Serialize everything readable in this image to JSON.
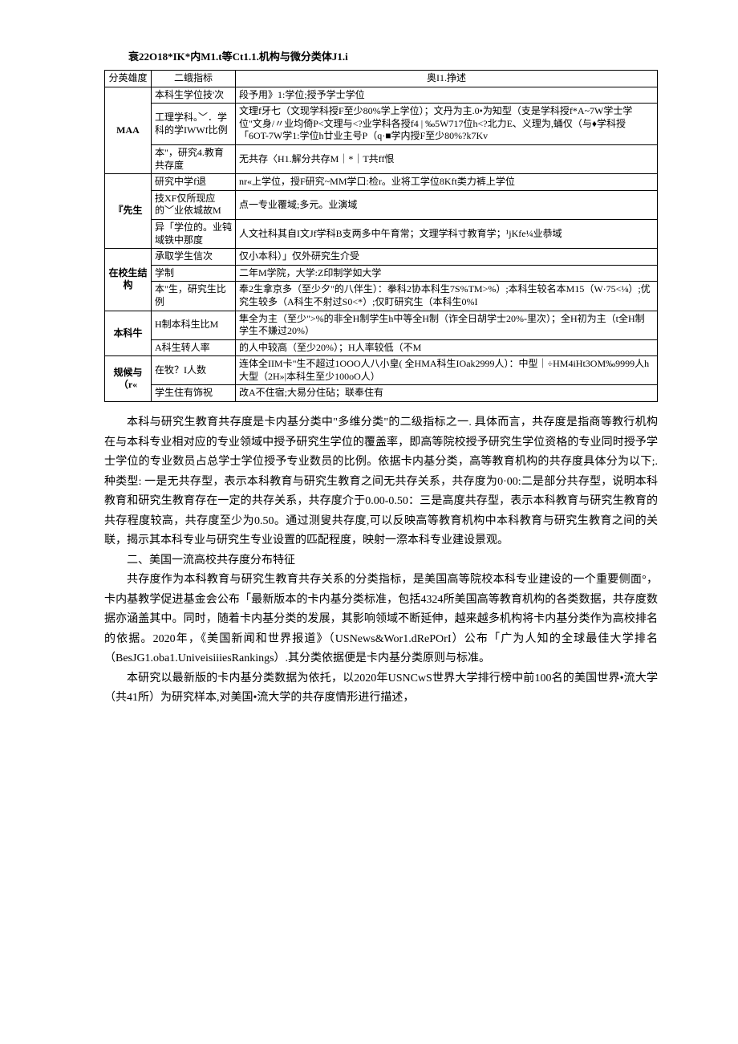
{
  "table_title": "衰22O18*IK*内M1.t等Ct1.1.机构与微分类体J1.i",
  "headers": [
    "分英雄度",
    "二蛾指标",
    "奥I1.挣述"
  ],
  "rows": [
    {
      "dim": "MAA",
      "dim_rowspan": 3,
      "sub": "本科生学位技'次",
      "desc": "段予用》1:学位;授予学士学位"
    },
    {
      "sub": "工理学科。﹀．学科的学IWWf比例",
      "desc": "文理f牙七（文现学科授F至少80%学上学位）；文丹为主.0•为知型（支是学科授f*A~7W学士学位\"文身/〃业均倚P<文理与<?业学科各授f4 | ‰5W717位h<?北力E、义理为,蛹仅（与♦学科授「6OT-7W学1:学位h廿业主号P（q·■学内授F至少80%?k7Kv"
    },
    {
      "sub": "本\"，研究4.教育共存度",
      "desc": "无共存〈H1.解分共存M｜*｜T共ff恨"
    },
    {
      "dim": "『先生",
      "dim_rowspan": 3,
      "sub": "研究中学f退",
      "desc": "nr«上学位，授F研究~MM学口:检r。业将工学位8Kft类力裤上学位"
    },
    {
      "sub": "技XF仅所现应的﹀业依城故M",
      "desc": "点一专业覆域;多元。业演域"
    },
    {
      "sub": "异「学位的。业钝域铁中那度",
      "desc": "人文社科其自I文Jf学科B支两多中午育常；文理学科寸教育学；¹jKfe¼业恭域"
    },
    {
      "dim": "在校生结构",
      "dim_rowspan": 3,
      "sub": "承取学生信次",
      "desc": "仅小本科）」仅外研究生介受"
    },
    {
      "sub": "学制",
      "desc": "二年M学院，大学:Z印制学如大学"
    },
    {
      "sub": "本\"生，研究生比例",
      "desc": "奉2生拿京多（至少夕\"的八伴生）：拳科2协本科生7S%TM>%）;本科生较名本M15（W·75<⅛）;优究生较多（A科生不射过S0<*）;仅盯研究生（本科生0%I"
    },
    {
      "dim": "本科牛",
      "dim_rowspan": 2,
      "sub": "H制本科生比M",
      "desc": "隼全为主（至少\">%的非全H制学生h中等全H制（诈全日胡学士20%-里次）；全H初为主（t全H制学生不嫌过20%）"
    },
    {
      "sub": "A科生转人率",
      "desc": "的人中较高（至少20%）；H人率较低（不M"
    },
    {
      "dim": "规候与（r«",
      "dim_rowspan": 2,
      "sub": "在牧？I人数",
      "desc": "连体全IIM卡\"生不超过1OOO人八小皇( 全HMA科生IOak2999人）：中型｜÷HM4iHt3OM‰9999人h大型（2H»|本科生至少100oO人）"
    },
    {
      "sub": "学生住有饰祝",
      "desc": "改A不住宿;大易分住砧；联奉住有"
    }
  ],
  "paragraphs": [
    "本科与研究生教育共存度是卡内基分类中\"多维分类\"的二级指标之一. 具体而言，共存度是指商等教行机构在与本科专业相对应的专业领域中授予研究生学位的覆盖率，即高等院校授予研究生学位资格的专业同时授予学士学位的专业数员占总学士学位授予专业数员的比例。依据卡内基分类，高等教育机构的共存度具体分为以下;. 种类型: 一是无共存型，表示本科教育与研究生教育之间无共存关系，共存度为0·00:二是部分共存型，说明本科教育和研究生教育存在一定的共存关系，共存度介于0.00-0.50：三是高度共存型，表示本科教育与研究生教育的共存程度较高，共存度至少为0.50。通过测叟共存度,可以反映高等教育机构中本科教育与研究生教育之间的关联，揭示其本科专业与研究生专业设置的匹配程度，映射一漈本科专业建设景观。",
    "二、美国一流高校共存度分布特征",
    "共存度作为本科教育与研究生教育共存关系的分类指标，是美国高等院校本科专业建设的一个重要侧面°，卡内基教学促进基金会公布「最新版本的卡内基分类标准，包括4324所美国高等教育机构的各类数据，共存度数据亦涵盖其中。同时，随着卡内基分类的发展，其影响领域不断延伸，越来越多机构将卡内基分类作为高校排名的依据。2020年，《美国新闻和世界报道》（USNews&Wor1.dRePOrI）公布「广为人知的全球最佳大学排名（BesJG1.oba1.UniveisiiiesRankings）.其分类依据便是卡内基分类原则与标准。",
    "本研究以最新版的卡内基分类数据为依托，以2020年USNCwS世界大学排行榜中前100名的美国世界•流大学（共41所）为研究样本,对美国•流大学的共存度情形进行描述，"
  ],
  "styles": {
    "body_width": 920,
    "background_color": "#ffffff",
    "text_color": "#000000",
    "border_color": "#000000",
    "table_font_size": 12,
    "body_font_size": 14,
    "line_height": 1.75
  }
}
